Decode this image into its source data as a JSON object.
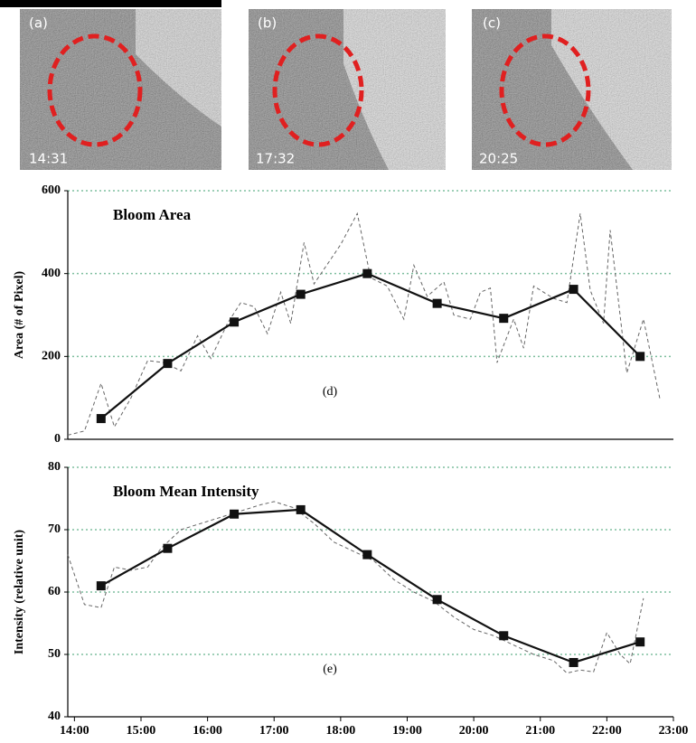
{
  "images": [
    {
      "label": "(a)",
      "time": "14:31"
    },
    {
      "label": "(b)",
      "time": "17:32"
    },
    {
      "label": "(c)",
      "time": "20:25"
    }
  ],
  "chart_data": [
    {
      "type": "line",
      "title": "Bloom Area",
      "annotation": "(d)",
      "y_label": "Area (# of Pixel)",
      "xlim": [
        13.9,
        23
      ],
      "ylim": [
        0,
        600
      ],
      "yticks": [
        0,
        200,
        400,
        600
      ],
      "grid": true,
      "grid_color": "#7fbf9f",
      "series": [
        {
          "color": "#666666",
          "dashed": true,
          "marker": "none",
          "x": [
            13.9,
            14.15,
            14.4,
            14.6,
            14.85,
            15.1,
            15.35,
            15.6,
            15.85,
            16.05,
            16.3,
            16.5,
            16.7,
            16.9,
            17.1,
            17.25,
            17.45,
            17.6,
            18.0,
            18.25,
            18.45,
            18.7,
            18.95,
            19.1,
            19.3,
            19.55,
            19.7,
            19.95,
            20.1,
            20.25,
            20.35,
            20.6,
            20.75,
            20.9,
            21.2,
            21.4,
            21.6,
            21.75,
            21.95,
            22.05,
            22.3,
            22.55,
            22.8
          ],
          "values": [
            10,
            20,
            135,
            30,
            100,
            190,
            185,
            165,
            250,
            195,
            280,
            330,
            320,
            255,
            355,
            280,
            475,
            375,
            470,
            545,
            390,
            370,
            290,
            420,
            345,
            380,
            300,
            290,
            355,
            365,
            185,
            290,
            220,
            370,
            340,
            330,
            545,
            360,
            280,
            505,
            160,
            290,
            95
          ]
        },
        {
          "color": "#111111",
          "dashed": false,
          "marker": "square",
          "x": [
            14.4,
            15.4,
            16.4,
            17.4,
            18.4,
            19.45,
            20.45,
            21.5,
            22.5
          ],
          "values": [
            50,
            183,
            283,
            350,
            400,
            328,
            292,
            362,
            200
          ]
        }
      ]
    },
    {
      "type": "line",
      "title": "Bloom Mean Intensity",
      "annotation": "(e)",
      "y_label": "Intensity (relative unit)",
      "xlim": [
        13.9,
        23
      ],
      "ylim": [
        40,
        80
      ],
      "yticks": [
        40,
        50,
        60,
        70,
        80
      ],
      "grid": true,
      "grid_color": "#7fbf9f",
      "xticks": [
        {
          "value": 14,
          "label": "14:00"
        },
        {
          "value": 15,
          "label": "15:00"
        },
        {
          "value": 16,
          "label": "16:00"
        },
        {
          "value": 17,
          "label": "17:00"
        },
        {
          "value": 18,
          "label": "18:00"
        },
        {
          "value": 19,
          "label": "19:00"
        },
        {
          "value": 20,
          "label": "20:00"
        },
        {
          "value": 21,
          "label": "21:00"
        },
        {
          "value": 22,
          "label": "22:00"
        },
        {
          "value": 23,
          "label": "23:00"
        }
      ],
      "series": [
        {
          "color": "#666666",
          "dashed": true,
          "marker": "none",
          "x": [
            13.9,
            14.15,
            14.4,
            14.6,
            14.85,
            15.1,
            15.3,
            15.6,
            15.9,
            16.2,
            16.5,
            16.8,
            17.0,
            17.3,
            17.6,
            17.9,
            18.2,
            18.5,
            18.8,
            19.1,
            19.4,
            19.7,
            20.0,
            20.3,
            20.6,
            20.9,
            21.2,
            21.4,
            21.6,
            21.8,
            22.0,
            22.2,
            22.35,
            22.55
          ],
          "values": [
            66,
            58,
            57.5,
            64,
            63.5,
            64,
            67,
            70,
            71,
            72,
            73,
            74,
            74.5,
            73.5,
            71,
            68,
            66.5,
            65,
            62,
            60,
            58.5,
            56,
            54,
            53,
            51.5,
            50,
            49,
            47,
            47.5,
            47.2,
            53.5,
            50,
            48.5,
            59
          ]
        },
        {
          "color": "#111111",
          "dashed": false,
          "marker": "square",
          "x": [
            14.4,
            15.4,
            16.4,
            17.4,
            18.4,
            19.45,
            20.45,
            21.5,
            22.5
          ],
          "values": [
            61,
            67,
            72.5,
            73.2,
            66,
            58.8,
            53,
            48.7,
            52
          ]
        }
      ]
    }
  ]
}
